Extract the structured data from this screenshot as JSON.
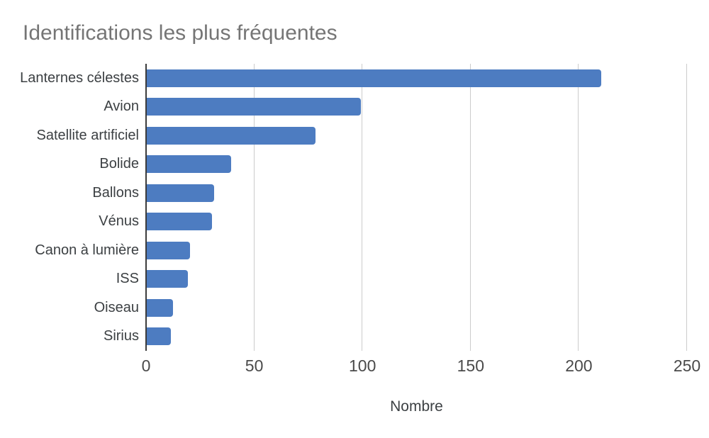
{
  "chart_data": {
    "type": "bar",
    "orientation": "horizontal",
    "title": "Identifications les plus fréquentes",
    "xlabel": "Nombre",
    "categories": [
      "Lanternes célestes",
      "Avion",
      "Satellite artificiel",
      "Bolide",
      "Ballons",
      "Vénus",
      "Canon à lumière",
      "ISS",
      "Oiseau",
      "Sirius"
    ],
    "values": [
      210,
      99,
      78,
      39,
      31,
      30,
      20,
      19,
      12,
      11
    ],
    "xlim": [
      0,
      250
    ],
    "x_ticks": [
      0,
      50,
      100,
      150,
      200,
      250
    ],
    "grid": "vertical-only",
    "legend": "none",
    "colors": {
      "bar": "#4d7cc1",
      "title": "#757575",
      "category_label": "#3c4043",
      "tick_label": "#4a4a4a",
      "axis_label": "#3c4043",
      "gridline": "#cccccc",
      "axis_line": "#3c3c3c",
      "background": "#ffffff"
    }
  }
}
